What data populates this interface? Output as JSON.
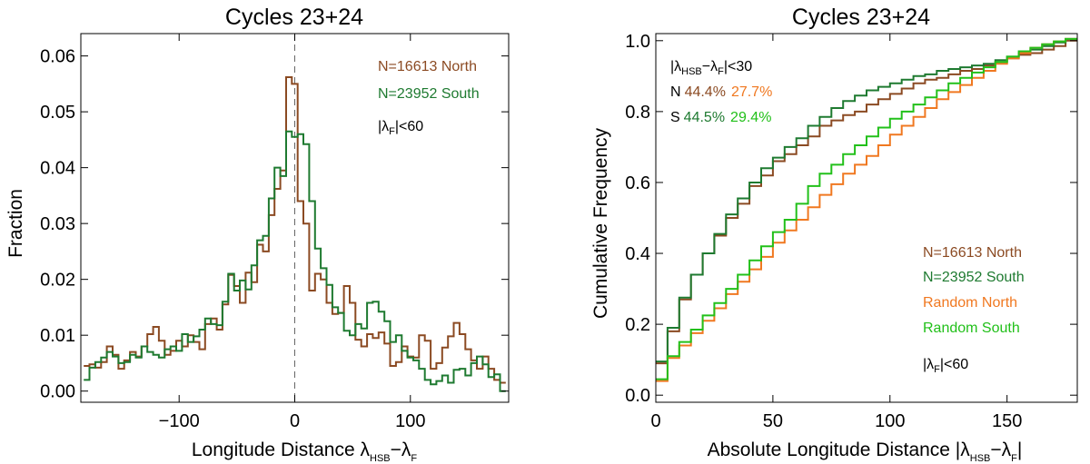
{
  "chart_data": [
    {
      "type": "line",
      "title": "Cycles 23+24",
      "xlabel": {
        "main": "Longitude Distance  λ",
        "sub1": "HSB",
        "mid": "−λ",
        "sub2": "F"
      },
      "ylabel": "Fraction",
      "xlim": [
        -185,
        185
      ],
      "ylim": [
        -0.002,
        0.064
      ],
      "xticks": [
        -100,
        0,
        100
      ],
      "xtick_labels": [
        "−100",
        "0",
        "100"
      ],
      "yticks": [
        0.0,
        0.01,
        0.02,
        0.03,
        0.04,
        0.05,
        0.06
      ],
      "ytick_labels": [
        "0.00",
        "0.01",
        "0.02",
        "0.03",
        "0.04",
        "0.05",
        "0.06"
      ],
      "vline_x": 0,
      "step_width": 5,
      "annotations": {
        "north": "N=16613 North",
        "south": "N=23952 South",
        "cond": {
          "pre": "|λ",
          "sub": "F",
          "post": "|<60"
        }
      },
      "series": [
        {
          "name": "N=16613 North",
          "color": "#8B4A22",
          "x": [
            -180,
            -175,
            -170,
            -165,
            -160,
            -155,
            -150,
            -145,
            -140,
            -135,
            -130,
            -125,
            -120,
            -115,
            -110,
            -105,
            -100,
            -95,
            -90,
            -85,
            -80,
            -75,
            -70,
            -65,
            -60,
            -55,
            -50,
            -45,
            -40,
            -35,
            -30,
            -25,
            -20,
            -15,
            -10,
            -5,
            0,
            5,
            10,
            15,
            20,
            25,
            30,
            35,
            40,
            45,
            50,
            55,
            60,
            65,
            70,
            75,
            80,
            85,
            90,
            95,
            100,
            105,
            110,
            115,
            120,
            125,
            130,
            135,
            140,
            145,
            150,
            155,
            160,
            165,
            170,
            175,
            180
          ],
          "y": [
            0.0045,
            0.0048,
            0.0042,
            0.0052,
            0.008,
            0.0065,
            0.004,
            0.0055,
            0.007,
            0.0062,
            0.008,
            0.0102,
            0.0115,
            0.009,
            0.0065,
            0.0072,
            0.009,
            0.008,
            0.01,
            0.0088,
            0.0075,
            0.012,
            0.013,
            0.011,
            0.0155,
            0.0208,
            0.0188,
            0.0158,
            0.0212,
            0.0195,
            0.0262,
            0.025,
            0.0315,
            0.0362,
            0.0395,
            0.0562,
            0.055,
            0.034,
            0.03,
            0.018,
            0.021,
            0.02,
            0.0158,
            0.0138,
            0.014,
            0.0188,
            0.0158,
            0.0092,
            0.008,
            0.0102,
            0.0095,
            0.0105,
            0.0085,
            0.0045,
            0.0052,
            0.008,
            0.0062,
            0.006,
            0.01,
            0.009,
            0.004,
            0.005,
            0.0078,
            0.0098,
            0.0122,
            0.0102,
            0.0075,
            0.0055,
            0.004,
            0.0062,
            0.004,
            0.002,
            0.0015
          ]
        },
        {
          "name": "N=23952 South",
          "color": "#1E7A30",
          "x": [
            -180,
            -175,
            -170,
            -165,
            -160,
            -155,
            -150,
            -145,
            -140,
            -135,
            -130,
            -125,
            -120,
            -115,
            -110,
            -105,
            -100,
            -95,
            -90,
            -85,
            -80,
            -75,
            -70,
            -65,
            -60,
            -55,
            -50,
            -45,
            -40,
            -35,
            -30,
            -25,
            -20,
            -15,
            -10,
            -5,
            0,
            5,
            10,
            15,
            20,
            25,
            30,
            35,
            40,
            45,
            50,
            55,
            60,
            65,
            70,
            75,
            80,
            85,
            90,
            95,
            100,
            105,
            110,
            115,
            120,
            125,
            130,
            135,
            140,
            145,
            150,
            155,
            160,
            165,
            170,
            175,
            180
          ],
          "y": [
            0.002,
            0.0042,
            0.0052,
            0.006,
            0.007,
            0.0062,
            0.005,
            0.0052,
            0.0065,
            0.006,
            0.008,
            0.007,
            0.0065,
            0.006,
            0.0075,
            0.008,
            0.0072,
            0.0102,
            0.0088,
            0.0098,
            0.011,
            0.013,
            0.012,
            0.0118,
            0.016,
            0.021,
            0.018,
            0.0198,
            0.0182,
            0.0225,
            0.027,
            0.0278,
            0.0345,
            0.04,
            0.0385,
            0.0465,
            0.0455,
            0.046,
            0.0442,
            0.034,
            0.0255,
            0.022,
            0.019,
            0.015,
            0.014,
            0.0108,
            0.01,
            0.012,
            0.0112,
            0.0158,
            0.016,
            0.0142,
            0.0125,
            0.0088,
            0.01,
            0.0072,
            0.006,
            0.0055,
            0.004,
            0.002,
            0.0012,
            0.0018,
            0.0028,
            0.0015,
            0.0038,
            0.004,
            0.0028,
            0.005,
            0.0062,
            0.0048,
            0.0025,
            0.003,
            0.0
          ]
        }
      ]
    },
    {
      "type": "line",
      "title": "Cycles 23+24",
      "xlabel": {
        "main": "Absolute Longitude Distance |λ",
        "sub1": "HSB",
        "mid": "−λ",
        "sub2": "F",
        "post": "|"
      },
      "ylabel": "Cumulative Frequency",
      "xlim": [
        0,
        180
      ],
      "ylim": [
        -0.02,
        1.02
      ],
      "xticks": [
        0,
        50,
        100,
        150
      ],
      "xtick_labels": [
        "0",
        "50",
        "100",
        "150"
      ],
      "yticks": [
        0.0,
        0.2,
        0.4,
        0.6,
        0.8,
        1.0
      ],
      "ytick_labels": [
        "0.0",
        "0.2",
        "0.4",
        "0.6",
        "0.8",
        "1.0"
      ],
      "step_width": 5,
      "annotations": {
        "cond30": {
          "pre": "|λ",
          "sub1": "HSB",
          "mid": "−λ",
          "sub2": "F",
          "post": "|<30"
        },
        "n_row": {
          "label": "N",
          "v1": "44.4%",
          "v2": "27.7%"
        },
        "s_row": {
          "label": "S",
          "v1": "44.5%",
          "v2": "29.4%"
        },
        "legend": [
          "N=16613 North",
          "N=23952 South",
          "Random North",
          "Random South"
        ],
        "cond": {
          "pre": "|λ",
          "sub": "F",
          "post": "|<60"
        }
      },
      "series": [
        {
          "name": "N=16613 North",
          "color": "#8B4A22",
          "x": [
            0,
            5,
            10,
            15,
            20,
            25,
            30,
            35,
            40,
            45,
            50,
            55,
            60,
            65,
            70,
            75,
            80,
            85,
            90,
            95,
            100,
            105,
            110,
            115,
            120,
            125,
            130,
            135,
            140,
            145,
            150,
            155,
            160,
            165,
            170,
            175
          ],
          "y": [
            0.09,
            0.18,
            0.27,
            0.34,
            0.4,
            0.45,
            0.5,
            0.54,
            0.59,
            0.62,
            0.66,
            0.68,
            0.705,
            0.73,
            0.76,
            0.775,
            0.79,
            0.8,
            0.82,
            0.835,
            0.85,
            0.865,
            0.88,
            0.89,
            0.895,
            0.905,
            0.915,
            0.92,
            0.93,
            0.94,
            0.95,
            0.96,
            0.965,
            0.975,
            0.985,
            1.0
          ]
        },
        {
          "name": "N=23952 South",
          "color": "#1E7A30",
          "x": [
            0,
            5,
            10,
            15,
            20,
            25,
            30,
            35,
            40,
            45,
            50,
            55,
            60,
            65,
            70,
            75,
            80,
            85,
            90,
            95,
            100,
            105,
            110,
            115,
            120,
            125,
            130,
            135,
            140,
            145,
            150,
            155,
            160,
            165,
            170,
            175
          ],
          "y": [
            0.095,
            0.19,
            0.275,
            0.34,
            0.4,
            0.455,
            0.51,
            0.555,
            0.6,
            0.64,
            0.67,
            0.7,
            0.725,
            0.76,
            0.785,
            0.81,
            0.83,
            0.845,
            0.86,
            0.87,
            0.88,
            0.89,
            0.9,
            0.905,
            0.915,
            0.92,
            0.925,
            0.93,
            0.935,
            0.945,
            0.955,
            0.965,
            0.975,
            0.985,
            0.995,
            1.005
          ]
        },
        {
          "name": "Random North",
          "color": "#F07820",
          "x": [
            0,
            5,
            10,
            15,
            20,
            25,
            30,
            35,
            40,
            45,
            50,
            55,
            60,
            65,
            70,
            75,
            80,
            85,
            90,
            95,
            100,
            105,
            110,
            115,
            120,
            125,
            130,
            135,
            140,
            145,
            150,
            155,
            160,
            165,
            170,
            175
          ],
          "y": [
            0.04,
            0.105,
            0.14,
            0.175,
            0.21,
            0.245,
            0.285,
            0.32,
            0.355,
            0.39,
            0.43,
            0.465,
            0.495,
            0.53,
            0.565,
            0.595,
            0.625,
            0.65,
            0.675,
            0.705,
            0.735,
            0.76,
            0.785,
            0.81,
            0.835,
            0.855,
            0.875,
            0.895,
            0.915,
            0.935,
            0.95,
            0.965,
            0.98,
            0.99,
            0.998,
            1.005
          ]
        },
        {
          "name": "Random South",
          "color": "#22C01A",
          "x": [
            0,
            5,
            10,
            15,
            20,
            25,
            30,
            35,
            40,
            45,
            50,
            55,
            60,
            65,
            70,
            75,
            80,
            85,
            90,
            95,
            100,
            105,
            110,
            115,
            120,
            125,
            130,
            135,
            140,
            145,
            150,
            155,
            160,
            165,
            170,
            175
          ],
          "y": [
            0.045,
            0.11,
            0.15,
            0.185,
            0.225,
            0.26,
            0.3,
            0.34,
            0.38,
            0.42,
            0.46,
            0.495,
            0.54,
            0.59,
            0.625,
            0.65,
            0.68,
            0.705,
            0.73,
            0.755,
            0.78,
            0.8,
            0.82,
            0.84,
            0.86,
            0.88,
            0.895,
            0.91,
            0.925,
            0.94,
            0.955,
            0.97,
            0.98,
            0.99,
            0.998,
            1.005
          ]
        }
      ]
    }
  ]
}
